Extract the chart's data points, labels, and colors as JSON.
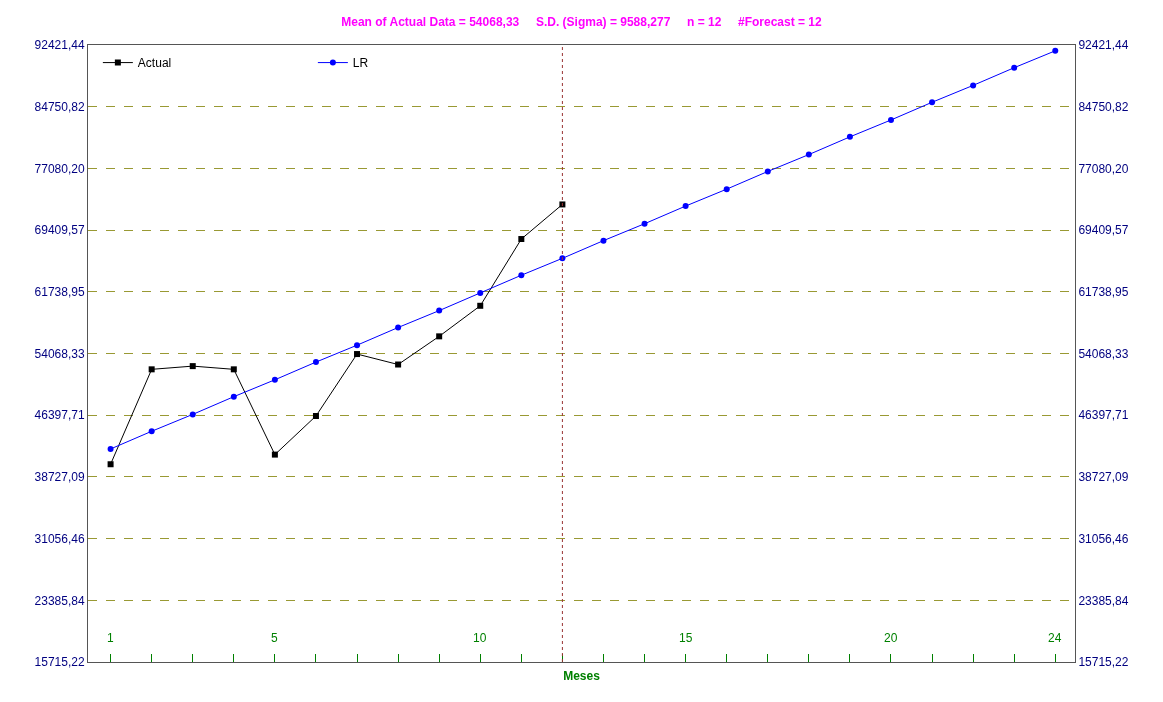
{
  "chart_data": {
    "type": "line",
    "title": "Mean of Actual Data = 54068,33     S.D. (Sigma) = 9588,277     n = 12     #Forecast = 12",
    "xlabel": "Meses",
    "xlim": [
      0.45,
      24.48
    ],
    "xticks": [
      1,
      {
        "value": 2,
        "label": null
      },
      {
        "value": 3,
        "label": null
      },
      {
        "value": 4,
        "label": null
      },
      5,
      {
        "value": 6,
        "label": null
      },
      {
        "value": 7,
        "label": null
      },
      {
        "value": 8,
        "label": null
      },
      {
        "value": 9,
        "label": null
      },
      10,
      {
        "value": 11,
        "label": null
      },
      {
        "value": 12,
        "label": null
      },
      {
        "value": 13,
        "label": null
      },
      {
        "value": 14,
        "label": null
      },
      15,
      {
        "value": 16,
        "label": null
      },
      {
        "value": 17,
        "label": null
      },
      {
        "value": 18,
        "label": null
      },
      {
        "value": 19,
        "label": null
      },
      20,
      {
        "value": 21,
        "label": null
      },
      {
        "value": 22,
        "label": null
      },
      {
        "value": 23,
        "label": null
      },
      24
    ],
    "ylim": [
      15715.22,
      92421.44
    ],
    "yticks": [
      {
        "value": 15715.22,
        "label": "15715,22"
      },
      {
        "value": 23385.84,
        "label": "23385,84"
      },
      {
        "value": 31056.46,
        "label": "31056,46"
      },
      {
        "value": 38727.09,
        "label": "38727,09"
      },
      {
        "value": 46397.71,
        "label": "46397,71"
      },
      {
        "value": 54068.33,
        "label": "54068,33"
      },
      {
        "value": 61738.95,
        "label": "61738,95"
      },
      {
        "value": 69409.57,
        "label": "69409,57"
      },
      {
        "value": 77080.2,
        "label": "77080,20"
      },
      {
        "value": 84750.82,
        "label": "84750,82"
      },
      {
        "value": 92421.44,
        "label": "92421,44"
      }
    ],
    "y2lim": [
      15715.22,
      92421.44
    ],
    "y2ticks": [
      {
        "value": 15715.22,
        "label": "15715,22"
      },
      {
        "value": 23385.84,
        "label": "23385,84"
      },
      {
        "value": 31056.46,
        "label": "31056,46"
      },
      {
        "value": 38727.09,
        "label": "38727,09"
      },
      {
        "value": 46397.71,
        "label": "46397,71"
      },
      {
        "value": 54068.33,
        "label": "54068,33"
      },
      {
        "value": 61738.95,
        "label": "61738,95"
      },
      {
        "value": 69409.57,
        "label": "69409,57"
      },
      {
        "value": 77080.2,
        "label": "77080,20"
      },
      {
        "value": 84750.82,
        "label": "84750,82"
      },
      {
        "value": 92421.44,
        "label": "92421,44"
      }
    ],
    "grid": "y",
    "legend": "top left",
    "line_style": "solid",
    "ref_lines": [
      {
        "axis": "x",
        "value": 12,
        "color": "#993333",
        "line_style": "dotted"
      }
    ],
    "series": [
      {
        "name": "Actual",
        "color": "#000000",
        "marker": "square",
        "x": [
          1,
          2,
          3,
          4,
          5,
          6,
          7,
          8,
          9,
          10,
          11,
          12
        ],
        "values": [
          40300,
          52100,
          52500,
          52100,
          41500,
          46300,
          54000,
          52700,
          56200,
          60000,
          68300,
          72600
        ]
      },
      {
        "name": "LR",
        "color": "#0000ff",
        "marker": "circle",
        "x": [
          1,
          2,
          3,
          4,
          5,
          6,
          7,
          8,
          9,
          10,
          11,
          12,
          13,
          14,
          15,
          16,
          17,
          18,
          19,
          20,
          21,
          22,
          23,
          24
        ],
        "values": [
          42200,
          44400,
          46500,
          48700,
          50800,
          53000,
          55100,
          57300,
          59400,
          61600,
          63800,
          65900,
          68100,
          70200,
          72400,
          74500,
          76700,
          78800,
          81000,
          83100,
          85300,
          87400,
          89600,
          91700
        ]
      }
    ]
  }
}
